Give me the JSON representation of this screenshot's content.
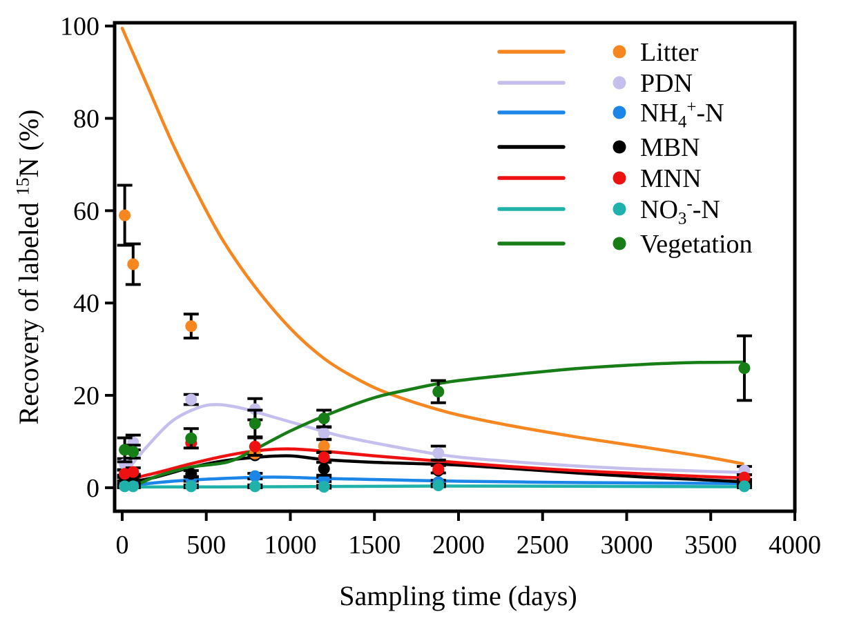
{
  "chart_data": {
    "type": "line",
    "title": "",
    "xlabel": "Sampling time (days)",
    "ylabel": "Recovery of labeled 15N (%)",
    "xlabel_parts": [
      {
        "t": "Sampling time (days)"
      }
    ],
    "ylabel_parts": [
      {
        "t": "Recovery of labeled "
      },
      {
        "t": "15",
        "pos": "sup"
      },
      {
        "t": "N (%)"
      }
    ],
    "xlim": [
      -45,
      4000
    ],
    "ylim": [
      -5.1,
      100.7
    ],
    "x_ticks": [
      0,
      500,
      1000,
      1500,
      2000,
      2500,
      3000,
      3500,
      4000
    ],
    "y_ticks": [
      0,
      20,
      40,
      60,
      80,
      100
    ],
    "grid": false,
    "legend_position": "top-right",
    "axis_color": "#000000",
    "background": "#ffffff",
    "marker": "circle",
    "series": [
      {
        "name": "Litter",
        "label_parts": [
          {
            "t": "Litter"
          }
        ],
        "color": "#F6861F",
        "points": [
          [
            15,
            59,
            6.5
          ],
          [
            65,
            48.4,
            4.4
          ],
          [
            410,
            35,
            2.6
          ],
          [
            790,
            7.4,
            null
          ],
          [
            1200,
            9,
            1.4
          ]
        ],
        "line": [
          [
            0,
            99.5
          ],
          [
            150,
            87
          ],
          [
            300,
            74.5
          ],
          [
            450,
            63.5
          ],
          [
            600,
            53.5
          ],
          [
            790,
            43.5
          ],
          [
            1000,
            34.5
          ],
          [
            1200,
            28
          ],
          [
            1400,
            23.5
          ],
          [
            1600,
            20.2
          ],
          [
            1940,
            16.3
          ],
          [
            2300,
            13.5
          ],
          [
            2700,
            11
          ],
          [
            3100,
            8.8
          ],
          [
            3450,
            6.8
          ],
          [
            3690,
            5.2
          ]
        ]
      },
      {
        "name": "PDN",
        "label_parts": [
          {
            "t": "PDN"
          }
        ],
        "color": "#C5BFEE",
        "points": [
          [
            15,
            5.1,
            1.2
          ],
          [
            65,
            9.8,
            1.6
          ],
          [
            410,
            19.1,
            1.1
          ],
          [
            790,
            17,
            2.3
          ],
          [
            1200,
            11.8,
            1.3
          ],
          [
            1880,
            7.5,
            1.5
          ],
          [
            3700,
            3.7,
            0.9
          ]
        ],
        "line": [
          [
            0,
            2.5
          ],
          [
            150,
            9
          ],
          [
            300,
            14.5
          ],
          [
            450,
            17.3
          ],
          [
            560,
            18
          ],
          [
            700,
            17.3
          ],
          [
            900,
            15.3
          ],
          [
            1100,
            13.2
          ],
          [
            1300,
            11.2
          ],
          [
            1600,
            9
          ],
          [
            1940,
            6.9
          ],
          [
            2300,
            5.7
          ],
          [
            2700,
            4.7
          ],
          [
            3100,
            4
          ],
          [
            3690,
            3.3
          ]
        ]
      },
      {
        "name": "NH4+-N",
        "label_parts": [
          {
            "t": "NH"
          },
          {
            "t": "4",
            "pos": "sub"
          },
          {
            "t": "+",
            "pos": "sup"
          },
          {
            "t": "-N"
          }
        ],
        "color": "#1C86E8",
        "points": [
          [
            15,
            0.5,
            0.4
          ],
          [
            65,
            0.5,
            0.4
          ],
          [
            410,
            1.9,
            0.5
          ],
          [
            790,
            2.5,
            0.6
          ],
          [
            1200,
            1.8,
            0.5
          ],
          [
            1880,
            1.2,
            0.4
          ],
          [
            3700,
            0.9,
            0.4
          ]
        ],
        "line": [
          [
            0,
            0.3
          ],
          [
            300,
            1.4
          ],
          [
            600,
            2
          ],
          [
            900,
            2.3
          ],
          [
            1200,
            2
          ],
          [
            1600,
            1.7
          ],
          [
            2000,
            1.4
          ],
          [
            2600,
            1.15
          ],
          [
            3200,
            1
          ],
          [
            3690,
            0.9
          ]
        ]
      },
      {
        "name": "MBN",
        "label_parts": [
          {
            "t": "MBN"
          }
        ],
        "color": "#000000",
        "points": [
          [
            15,
            2.1,
            0.6
          ],
          [
            65,
            2.3,
            0.6
          ],
          [
            410,
            3,
            0.7
          ],
          [
            790,
            7,
            null
          ],
          [
            1200,
            4.1,
            1.4
          ],
          [
            1880,
            3.7,
            null
          ],
          [
            3700,
            1.3,
            0.5
          ]
        ],
        "line": [
          [
            0,
            0.8
          ],
          [
            200,
            2.3
          ],
          [
            400,
            4.3
          ],
          [
            600,
            5.8
          ],
          [
            800,
            6.6
          ],
          [
            1000,
            6.9
          ],
          [
            1200,
            6.1
          ],
          [
            1500,
            5.5
          ],
          [
            1940,
            5
          ],
          [
            2300,
            4.2
          ],
          [
            2700,
            3.2
          ],
          [
            3100,
            2.3
          ],
          [
            3400,
            1.8
          ],
          [
            3690,
            1.3
          ]
        ]
      },
      {
        "name": "MNN",
        "label_parts": [
          {
            "t": "MNN"
          }
        ],
        "color": "#EE1111",
        "points": [
          [
            15,
            3,
            0.8
          ],
          [
            65,
            3.4,
            0.9
          ],
          [
            410,
            9.7,
            null
          ],
          [
            790,
            8.9,
            1.9
          ],
          [
            1200,
            6.6,
            1.1
          ],
          [
            1880,
            4,
            0.8
          ],
          [
            3700,
            2.2,
            0.6
          ]
        ],
        "line": [
          [
            0,
            1.5
          ],
          [
            200,
            3.2
          ],
          [
            400,
            5.1
          ],
          [
            600,
            6.8
          ],
          [
            800,
            8
          ],
          [
            1000,
            8.4
          ],
          [
            1200,
            7.9
          ],
          [
            1500,
            6.9
          ],
          [
            1940,
            5.6
          ],
          [
            2300,
            4.6
          ],
          [
            2700,
            3.7
          ],
          [
            3100,
            3
          ],
          [
            3400,
            2.5
          ],
          [
            3690,
            2.1
          ]
        ]
      },
      {
        "name": "NO3--N",
        "label_parts": [
          {
            "t": "NO"
          },
          {
            "t": "3",
            "pos": "sub"
          },
          {
            "t": "-",
            "pos": "sup"
          },
          {
            "t": "-N"
          }
        ],
        "color": "#20B2AA",
        "points": [
          [
            15,
            0.3,
            0.3
          ],
          [
            65,
            0.3,
            0.3
          ],
          [
            410,
            0.3,
            0.3
          ],
          [
            790,
            0.3,
            0.3
          ],
          [
            1200,
            0.2,
            0.3
          ],
          [
            1880,
            0.5,
            0.3
          ],
          [
            3700,
            0.3,
            0.3
          ]
        ],
        "line": [
          [
            0,
            0.15
          ],
          [
            900,
            0.2
          ],
          [
            1900,
            0.35
          ],
          [
            2800,
            0.3
          ],
          [
            3690,
            0.2
          ]
        ]
      },
      {
        "name": "Vegetation",
        "label_parts": [
          {
            "t": "Vegetation"
          }
        ],
        "color": "#177D17",
        "points": [
          [
            15,
            8.2,
            2.6
          ],
          [
            65,
            7.8,
            1.4
          ],
          [
            410,
            10.7,
            2.1
          ],
          [
            790,
            13.9,
            2.9
          ],
          [
            1200,
            15,
            1.8
          ],
          [
            1880,
            20.8,
            2.4
          ],
          [
            3700,
            25.9,
            7
          ]
        ],
        "line": [
          [
            60,
            0.1
          ],
          [
            200,
            2.4
          ],
          [
            400,
            4.4
          ],
          [
            630,
            5.6
          ],
          [
            790,
            8.3
          ],
          [
            1000,
            12.3
          ],
          [
            1255,
            16.3
          ],
          [
            1500,
            19.5
          ],
          [
            1700,
            21.2
          ],
          [
            1940,
            22.9
          ],
          [
            2300,
            24.4
          ],
          [
            2700,
            25.8
          ],
          [
            3100,
            26.7
          ],
          [
            3400,
            27.1
          ],
          [
            3690,
            27.2
          ]
        ]
      }
    ]
  }
}
